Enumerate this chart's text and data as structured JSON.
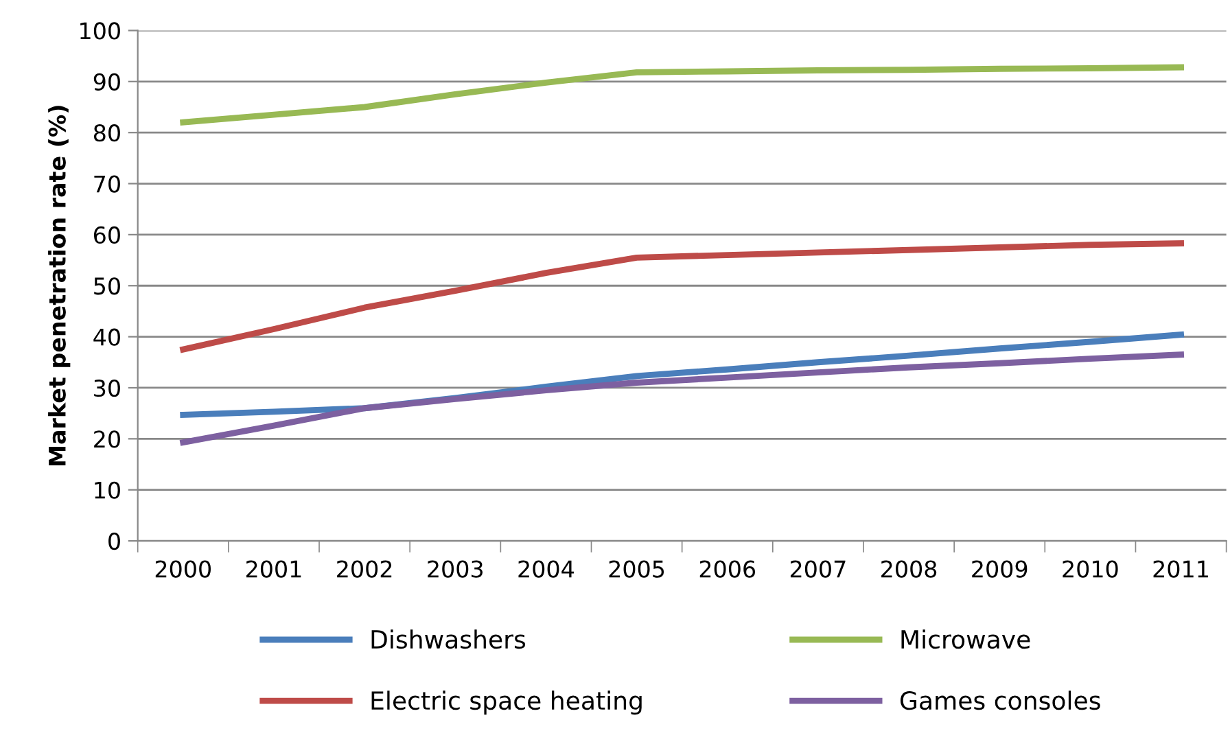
{
  "chart_data": {
    "type": "line",
    "ylabel": "Market penetration rate (%)",
    "categories": [
      "2000",
      "2001",
      "2002",
      "2003",
      "2004",
      "2005",
      "2006",
      "2007",
      "2008",
      "2009",
      "2010",
      "2011"
    ],
    "series": [
      {
        "name": "Dishwashers",
        "color": "#4a7ebb",
        "values": [
          24.7,
          25.3,
          26,
          28,
          30.2,
          32.3,
          33.6,
          35,
          36.3,
          37.7,
          39,
          40.4
        ]
      },
      {
        "name": "Electric space heating",
        "color": "#be4b48",
        "values": [
          37.5,
          41.5,
          45.7,
          49,
          52.5,
          55.5,
          56,
          56.5,
          57,
          57.5,
          58,
          58.3
        ]
      },
      {
        "name": "Microwave",
        "color": "#98b954",
        "values": [
          82,
          83.5,
          85,
          87.5,
          89.8,
          91.8,
          92,
          92.2,
          92.3,
          92.5,
          92.6,
          92.8
        ]
      },
      {
        "name": "Games consoles",
        "color": "#7d60a0",
        "values": [
          19.3,
          22.6,
          26,
          27.8,
          29.5,
          31,
          32,
          33,
          34,
          34.8,
          35.7,
          36.5
        ]
      }
    ],
    "ylim": [
      0,
      100
    ],
    "yticks": [
      0,
      10,
      20,
      30,
      40,
      50,
      60,
      70,
      80,
      90,
      100
    ],
    "grid": "y",
    "legend": "bottom",
    "marker": "none",
    "line_style": "solid"
  }
}
